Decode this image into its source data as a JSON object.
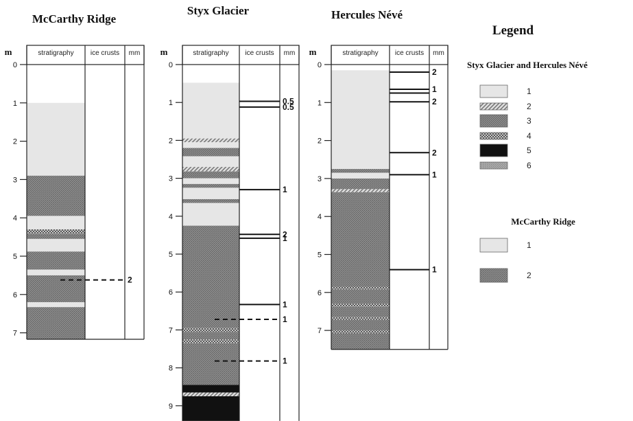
{
  "legend": {
    "title": "Legend",
    "group1_title": "Styx Glacier and Hercules Névé",
    "group1_items": [
      {
        "label": "1",
        "pattern": "light"
      },
      {
        "label": "2",
        "pattern": "hatch"
      },
      {
        "label": "3",
        "pattern": "dark"
      },
      {
        "label": "4",
        "pattern": "check"
      },
      {
        "label": "5",
        "pattern": "black"
      },
      {
        "label": "6",
        "pattern": "medium"
      }
    ],
    "group2_title": "McCarthy Ridge",
    "group2_items": [
      {
        "label": "1",
        "pattern": "light"
      },
      {
        "label": "2",
        "pattern": "dark"
      }
    ]
  },
  "columns_header": {
    "unit": "m",
    "stratigraphy": "stratigraphy",
    "ice_crusts": "ice crusts",
    "mm": "mm"
  },
  "colors": {
    "light": "#e6e6e6",
    "dark": "#7a7a7a",
    "medium": "#9a9a9a",
    "black": "#111111",
    "line": "#222222"
  },
  "profiles": [
    {
      "title": "McCarthy Ridge",
      "ticks": [
        "0",
        "1",
        "2",
        "3",
        "4",
        "5",
        "6",
        "7"
      ],
      "layers": [
        {
          "from": 1.0,
          "to": 2.9,
          "type": "light"
        },
        {
          "from": 2.9,
          "to": 3.95,
          "type": "dark"
        },
        {
          "from": 3.95,
          "to": 4.3,
          "type": "light"
        },
        {
          "from": 4.3,
          "to": 4.42,
          "type": "check"
        },
        {
          "from": 4.42,
          "to": 4.55,
          "type": "dark"
        },
        {
          "from": 4.55,
          "to": 4.88,
          "type": "light"
        },
        {
          "from": 4.88,
          "to": 5.35,
          "type": "dark"
        },
        {
          "from": 5.35,
          "to": 5.5,
          "type": "light"
        },
        {
          "from": 5.5,
          "to": 6.2,
          "type": "dark"
        },
        {
          "from": 6.2,
          "to": 6.33,
          "type": "light"
        },
        {
          "from": 6.33,
          "to": 7.2,
          "type": "dark"
        }
      ],
      "bottom": 7.2,
      "crusts": [
        {
          "depth": 5.62,
          "style": "dashed",
          "value": "2"
        }
      ]
    },
    {
      "title": "Styx Glacier",
      "ticks": [
        "0",
        "1",
        "2",
        "3",
        "4",
        "5",
        "6",
        "7",
        "8",
        "9"
      ],
      "layers": [
        {
          "from": 0.48,
          "to": 1.95,
          "type": "light"
        },
        {
          "from": 1.95,
          "to": 2.05,
          "type": "hatch"
        },
        {
          "from": 2.05,
          "to": 2.2,
          "type": "light"
        },
        {
          "from": 2.2,
          "to": 2.42,
          "type": "dark"
        },
        {
          "from": 2.42,
          "to": 2.7,
          "type": "light"
        },
        {
          "from": 2.7,
          "to": 2.82,
          "type": "hatch"
        },
        {
          "from": 2.82,
          "to": 3.0,
          "type": "dark"
        },
        {
          "from": 3.0,
          "to": 3.15,
          "type": "light"
        },
        {
          "from": 3.15,
          "to": 3.25,
          "type": "dark"
        },
        {
          "from": 3.25,
          "to": 3.55,
          "type": "light"
        },
        {
          "from": 3.55,
          "to": 3.65,
          "type": "dark"
        },
        {
          "from": 3.65,
          "to": 4.25,
          "type": "light"
        },
        {
          "from": 4.25,
          "to": 6.95,
          "type": "dark"
        },
        {
          "from": 6.95,
          "to": 7.05,
          "type": "check"
        },
        {
          "from": 7.05,
          "to": 7.25,
          "type": "dark"
        },
        {
          "from": 7.25,
          "to": 7.35,
          "type": "check"
        },
        {
          "from": 7.35,
          "to": 8.45,
          "type": "dark"
        },
        {
          "from": 8.45,
          "to": 8.65,
          "type": "black"
        },
        {
          "from": 8.65,
          "to": 8.75,
          "type": "hatch"
        },
        {
          "from": 8.75,
          "to": 9.4,
          "type": "black"
        }
      ],
      "bottom": 9.4,
      "crusts": [
        {
          "depth": 0.97,
          "style": "solid",
          "value": "0.5"
        },
        {
          "depth": 1.12,
          "style": "solid",
          "value": "0.5"
        },
        {
          "depth": 3.3,
          "style": "solid",
          "value": "1"
        },
        {
          "depth": 4.48,
          "style": "solid",
          "value": "2"
        },
        {
          "depth": 4.58,
          "style": "solid",
          "value": "1"
        },
        {
          "depth": 6.33,
          "style": "solid",
          "value": "1"
        },
        {
          "depth": 6.72,
          "style": "dashed",
          "value": "1"
        },
        {
          "depth": 7.82,
          "style": "dashed",
          "value": "1"
        }
      ]
    },
    {
      "title": "Hercules Névé",
      "ticks": [
        "0",
        "1",
        "2",
        "3",
        "4",
        "5",
        "6",
        "7"
      ],
      "layers": [
        {
          "from": 0.15,
          "to": 2.75,
          "type": "light"
        },
        {
          "from": 2.75,
          "to": 2.85,
          "type": "dark"
        },
        {
          "from": 2.85,
          "to": 3.0,
          "type": "light"
        },
        {
          "from": 3.0,
          "to": 3.28,
          "type": "dark"
        },
        {
          "from": 3.28,
          "to": 3.36,
          "type": "hatch"
        },
        {
          "from": 3.36,
          "to": 5.85,
          "type": "dark"
        },
        {
          "from": 5.85,
          "to": 5.92,
          "type": "check"
        },
        {
          "from": 5.92,
          "to": 6.3,
          "type": "dark"
        },
        {
          "from": 6.3,
          "to": 6.38,
          "type": "check"
        },
        {
          "from": 6.38,
          "to": 6.65,
          "type": "dark"
        },
        {
          "from": 6.65,
          "to": 6.72,
          "type": "check"
        },
        {
          "from": 6.72,
          "to": 7.0,
          "type": "dark"
        },
        {
          "from": 7.0,
          "to": 7.08,
          "type": "check"
        },
        {
          "from": 7.08,
          "to": 7.5,
          "type": "dark"
        }
      ],
      "bottom": 7.5,
      "crusts": [
        {
          "depth": 0.2,
          "style": "solid",
          "value": "2"
        },
        {
          "depth": 0.65,
          "style": "solid",
          "value": "1"
        },
        {
          "depth": 0.75,
          "style": "solid",
          "value": ""
        },
        {
          "depth": 0.98,
          "style": "solid",
          "value": "2"
        },
        {
          "depth": 2.32,
          "style": "solid",
          "value": "2"
        },
        {
          "depth": 2.9,
          "style": "solid",
          "value": "1"
        },
        {
          "depth": 5.4,
          "style": "solid",
          "value": "1"
        }
      ]
    }
  ]
}
